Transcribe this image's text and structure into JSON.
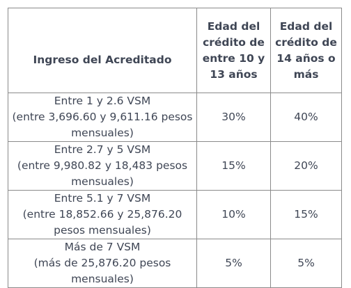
{
  "table": {
    "headers": [
      "Ingreso del Acreditado",
      "Edad del crédito de entre 10 y 13 años",
      "Edad del crédito de 14 años o más"
    ],
    "rows": [
      {
        "range": "Entre 1 y 2.6 VSM",
        "detail_1": "(entre 3,696.60 y 9,611.16 pesos",
        "detail_2": "mensuales)",
        "rate_10_13": "30%",
        "rate_14_plus": "40%"
      },
      {
        "range": "Entre 2.7 y 5 VSM",
        "detail_1": "(entre 9,980.82 y 18,483 pesos",
        "detail_2": "mensuales)",
        "rate_10_13": "15%",
        "rate_14_plus": "20%"
      },
      {
        "range": "Entre 5.1 y 7 VSM",
        "detail_1": "(entre 18,852.66 y 25,876.20",
        "detail_2": "pesos mensuales)",
        "rate_10_13": "10%",
        "rate_14_plus": "15%"
      },
      {
        "range": "Más de 7 VSM",
        "detail_1": "(más de 25,876.20 pesos",
        "detail_2": "mensuales)",
        "rate_10_13": "5%",
        "rate_14_plus": "5%"
      }
    ]
  }
}
